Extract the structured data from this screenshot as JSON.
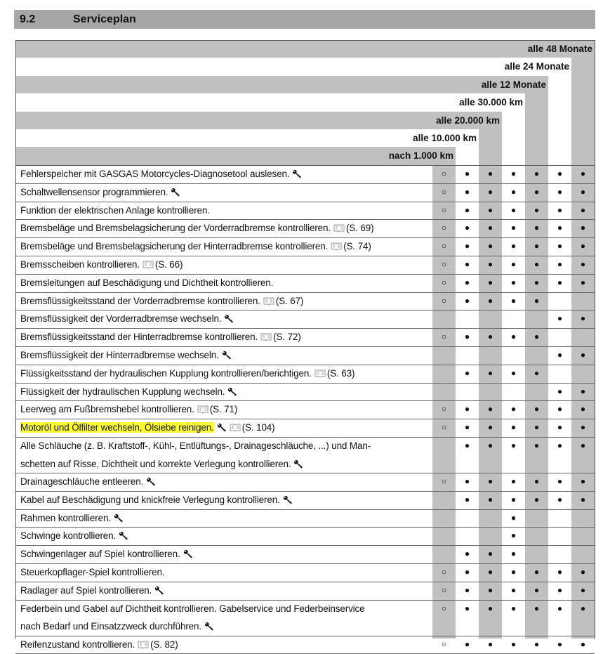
{
  "section": {
    "number": "9.2",
    "title": "Serviceplan"
  },
  "table": {
    "columns": [
      "nach 1.000 km",
      "alle 10.000 km",
      "alle 20.000 km",
      "alle 30.000 km",
      "alle 12 Monate",
      "alle 24 Monate",
      "alle 48 Monate"
    ],
    "rows": [
      {
        "lines": [
          "Fehlerspeicher mit GASGAS Motorcycles-Diagnosetool auslesen."
        ],
        "wrench": true,
        "marks": [
          "○",
          "●",
          "●",
          "●",
          "●",
          "●",
          "●"
        ]
      },
      {
        "lines": [
          "Schaltwellensensor programmieren."
        ],
        "wrench": true,
        "marks": [
          "○",
          "●",
          "●",
          "●",
          "●",
          "●",
          "●"
        ]
      },
      {
        "lines": [
          "Funktion der elektrischen Anlage kontrollieren."
        ],
        "marks": [
          "○",
          "●",
          "●",
          "●",
          "●",
          "●",
          "●"
        ]
      },
      {
        "lines": [
          "Bremsbeläge und Bremsbelagsicherung der Vorderradbremse kontrollieren."
        ],
        "ref": "(S. 69)",
        "marks": [
          "○",
          "●",
          "●",
          "●",
          "●",
          "●",
          "●"
        ]
      },
      {
        "lines": [
          "Bremsbeläge und Bremsbelagsicherung der Hinterradbremse kontrollieren."
        ],
        "ref": "(S. 74)",
        "marks": [
          "○",
          "●",
          "●",
          "●",
          "●",
          "●",
          "●"
        ]
      },
      {
        "lines": [
          "Bremsscheiben kontrollieren."
        ],
        "ref": "(S. 66)",
        "marks": [
          "○",
          "●",
          "●",
          "●",
          "●",
          "●",
          "●"
        ]
      },
      {
        "lines": [
          "Bremsleitungen auf Beschädigung und Dichtheit kontrollieren."
        ],
        "marks": [
          "○",
          "●",
          "●",
          "●",
          "●",
          "●",
          "●"
        ]
      },
      {
        "lines": [
          "Bremsflüssigkeitsstand der Vorderradbremse kontrollieren."
        ],
        "ref": "(S. 67)",
        "marks": [
          "○",
          "●",
          "●",
          "●",
          "●",
          null,
          null
        ]
      },
      {
        "lines": [
          "Bremsflüssigkeit der Vorderradbremse wechseln."
        ],
        "wrench": true,
        "marks": [
          null,
          null,
          null,
          null,
          null,
          "●",
          "●"
        ]
      },
      {
        "lines": [
          "Bremsflüssigkeitsstand der Hinterradbremse kontrollieren."
        ],
        "ref": "(S. 72)",
        "marks": [
          "○",
          "●",
          "●",
          "●",
          "●",
          null,
          null
        ]
      },
      {
        "lines": [
          "Bremsflüssigkeit der Hinterradbremse wechseln."
        ],
        "wrench": true,
        "marks": [
          null,
          null,
          null,
          null,
          null,
          "●",
          "●"
        ]
      },
      {
        "lines": [
          "Flüssigkeitsstand der hydraulischen Kupplung kontrollieren/berichtigen."
        ],
        "ref": "(S. 63)",
        "marks": [
          null,
          "●",
          "●",
          "●",
          "●",
          null,
          null
        ]
      },
      {
        "lines": [
          "Flüssigkeit der hydraulischen Kupplung wechseln."
        ],
        "wrench": true,
        "marks": [
          null,
          null,
          null,
          null,
          null,
          "●",
          "●"
        ]
      },
      {
        "lines": [
          "Leerweg am Fußbremshebel kontrollieren."
        ],
        "ref": "(S. 71)",
        "marks": [
          "○",
          "●",
          "●",
          "●",
          "●",
          "●",
          "●"
        ]
      },
      {
        "lines": [
          "Motoröl und Ölfilter wechseln, Ölsiebe reinigen."
        ],
        "highlight": true,
        "wrench": true,
        "ref": "(S. 104)",
        "marks": [
          "○",
          "●",
          "●",
          "●",
          "●",
          "●",
          "●"
        ]
      },
      {
        "lines": [
          "Alle Schläuche (z. B. Kraftstoff-, Kühl-, Entlüftungs-, Drainageschläuche, ...) und Man-",
          "schetten auf Risse, Dichtheit und korrekte Verlegung kontrollieren."
        ],
        "wrench": true,
        "marks": [
          null,
          "●",
          "●",
          "●",
          "●",
          "●",
          "●"
        ]
      },
      {
        "lines": [
          "Drainageschläuche entleeren."
        ],
        "wrench": true,
        "marks": [
          "○",
          "●",
          "●",
          "●",
          "●",
          "●",
          "●"
        ]
      },
      {
        "lines": [
          "Kabel auf Beschädigung und knickfreie Verlegung kontrollieren."
        ],
        "wrench": true,
        "marks": [
          null,
          "●",
          "●",
          "●",
          "●",
          "●",
          "●"
        ]
      },
      {
        "lines": [
          "Rahmen kontrollieren."
        ],
        "wrench": true,
        "marks": [
          null,
          null,
          null,
          "●",
          null,
          null,
          null
        ]
      },
      {
        "lines": [
          "Schwinge kontrollieren."
        ],
        "wrench": true,
        "marks": [
          null,
          null,
          null,
          "●",
          null,
          null,
          null
        ]
      },
      {
        "lines": [
          "Schwingenlager auf Spiel kontrollieren."
        ],
        "wrench": true,
        "marks": [
          null,
          "●",
          "●",
          "●",
          null,
          null,
          null
        ]
      },
      {
        "lines": [
          "Steuerkopflager-Spiel kontrollieren."
        ],
        "marks": [
          "○",
          "●",
          "●",
          "●",
          "●",
          "●",
          "●"
        ]
      },
      {
        "lines": [
          "Radlager auf Spiel kontrollieren."
        ],
        "wrench": true,
        "marks": [
          "○",
          "●",
          "●",
          "●",
          "●",
          "●",
          "●"
        ]
      },
      {
        "lines": [
          "Federbein und Gabel auf Dichtheit kontrollieren. Gabelservice und Federbeinservice",
          "nach Bedarf und Einsatzzweck durchführen."
        ],
        "wrench": true,
        "marks": [
          "○",
          "●",
          "●",
          "●",
          "●",
          "●",
          "●"
        ]
      },
      {
        "lines": [
          "Reifenzustand kontrollieren."
        ],
        "ref": "(S. 82)",
        "marks": [
          "○",
          "●",
          "●",
          "●",
          "●",
          "●",
          "●"
        ]
      }
    ]
  }
}
